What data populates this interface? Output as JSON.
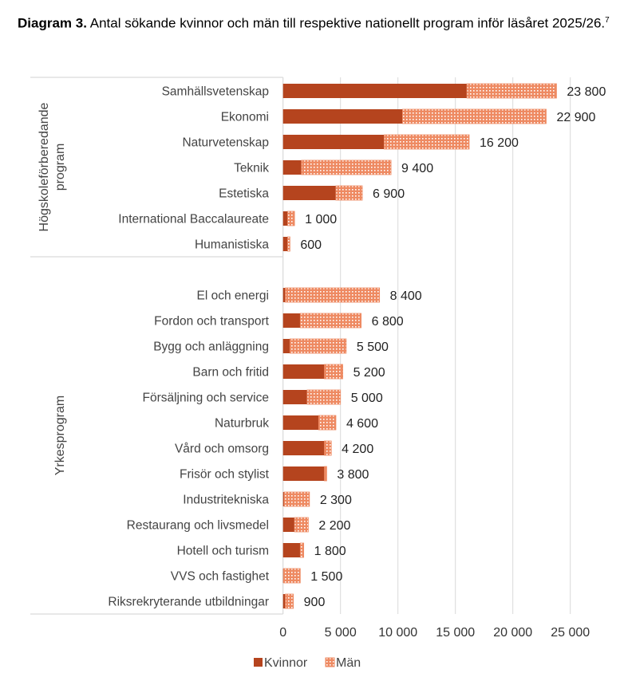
{
  "title": {
    "label": "Diagram 3.",
    "text": "Antal sökande kvinnor och män till respektive nationellt program inför läsåret 2025/26.",
    "footnote": "7"
  },
  "colors": {
    "kvinnor": "#B5441E",
    "man": "#EE8A62",
    "grid": "#D9D9D9"
  },
  "chart_data": {
    "type": "bar",
    "orientation": "horizontal",
    "stacked": true,
    "title": "Antal sökande kvinnor och män till respektive nationellt program inför läsåret 2025/26.",
    "xlim": [
      0,
      25000
    ],
    "xticks": [
      0,
      5000,
      10000,
      15000,
      20000,
      25000
    ],
    "xtick_labels": [
      "0",
      "5 000",
      "10 000",
      "15 000",
      "20 000",
      "25 000"
    ],
    "legend": {
      "placement": "bottom",
      "entries": [
        "Kvinnor",
        "Män"
      ]
    },
    "grid": "vertical",
    "groups": [
      {
        "name": "Högskoleförberedande program",
        "name_lines": [
          "Högskoleförberedande",
          "program"
        ],
        "categories": [
          "Samhällsvetenskap",
          "Ekonomi",
          "Naturvetenskap",
          "Teknik",
          "Estetiska",
          "International Baccalaureate",
          "Humanistiska"
        ],
        "series": [
          {
            "name": "Kvinnor",
            "values": [
              16000,
              10400,
              8800,
              1600,
              4600,
              400,
              400
            ]
          },
          {
            "name": "Män",
            "values": [
              7800,
              12500,
              7400,
              7800,
              2300,
              600,
              200
            ]
          }
        ],
        "totals": [
          23800,
          22900,
          16200,
          9400,
          6900,
          1000,
          600
        ],
        "total_labels": [
          "23 800",
          "22 900",
          "16 200",
          "9 400",
          "6 900",
          "1 000",
          "600"
        ]
      },
      {
        "name": "Yrkesprogram",
        "name_lines": [
          "Yrkesprogram"
        ],
        "categories": [
          "El och energi",
          "Fordon och transport",
          "Bygg och anläggning",
          "Barn och fritid",
          "Försäljning och service",
          "Naturbruk",
          "Vård och omsorg",
          "Frisör och stylist",
          "Industritekniska",
          "Restaurang och livsmedel",
          "Hotell och turism",
          "VVS och fastighet",
          "Riksrekryterande utbildningar"
        ],
        "series": [
          {
            "name": "Kvinnor",
            "values": [
              200,
              1500,
              600,
              3600,
              2100,
              3100,
              3600,
              3600,
              100,
              1000,
              1500,
              50,
              200
            ]
          },
          {
            "name": "Män",
            "values": [
              8200,
              5300,
              4900,
              1600,
              2900,
              1500,
              600,
              200,
              2200,
              1200,
              300,
              1450,
              700
            ]
          }
        ],
        "totals": [
          8400,
          6800,
          5500,
          5200,
          5000,
          4600,
          4200,
          3800,
          2300,
          2200,
          1800,
          1500,
          900
        ],
        "total_labels": [
          "8 400",
          "6 800",
          "5 500",
          "5 200",
          "5 000",
          "4 600",
          "4 200",
          "3 800",
          "2 300",
          "2 200",
          "1 800",
          "1 500",
          "900"
        ]
      }
    ]
  }
}
